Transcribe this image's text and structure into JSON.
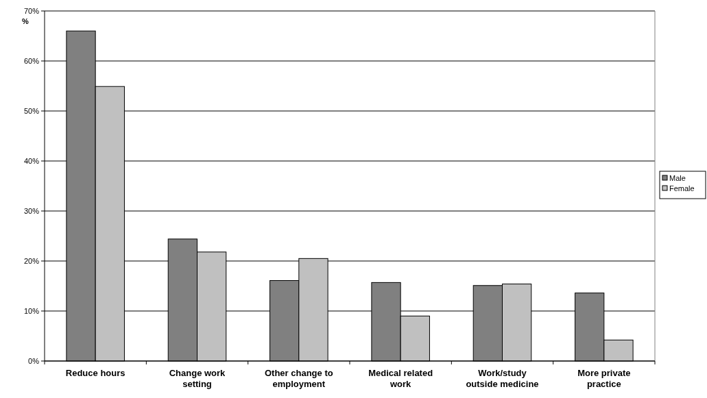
{
  "chart_data": {
    "type": "bar",
    "ylabel": "%",
    "categories": [
      "Reduce hours",
      "Change work setting",
      "Other change to employment",
      "Medical related work",
      "Work/study outside medicine",
      "More private practice"
    ],
    "series": [
      {
        "name": "Male",
        "color": "#808080",
        "values": [
          66,
          24.4,
          16.1,
          15.7,
          15.1,
          13.6
        ]
      },
      {
        "name": "Female",
        "color": "#c0c0c0",
        "values": [
          54.9,
          21.8,
          20.5,
          9.0,
          15.4,
          4.2
        ]
      }
    ],
    "ylim": [
      0,
      70
    ],
    "yticks": [
      {
        "value": 0,
        "label": "0%"
      },
      {
        "value": 10,
        "label": "10%"
      },
      {
        "value": 20,
        "label": "20%"
      },
      {
        "value": 30,
        "label": "30%"
      },
      {
        "value": 40,
        "label": "40%"
      },
      {
        "value": 50,
        "label": "50%"
      },
      {
        "value": 60,
        "label": "60%"
      },
      {
        "value": 70,
        "label": "70%"
      }
    ],
    "grid": "y",
    "legend": "right"
  }
}
